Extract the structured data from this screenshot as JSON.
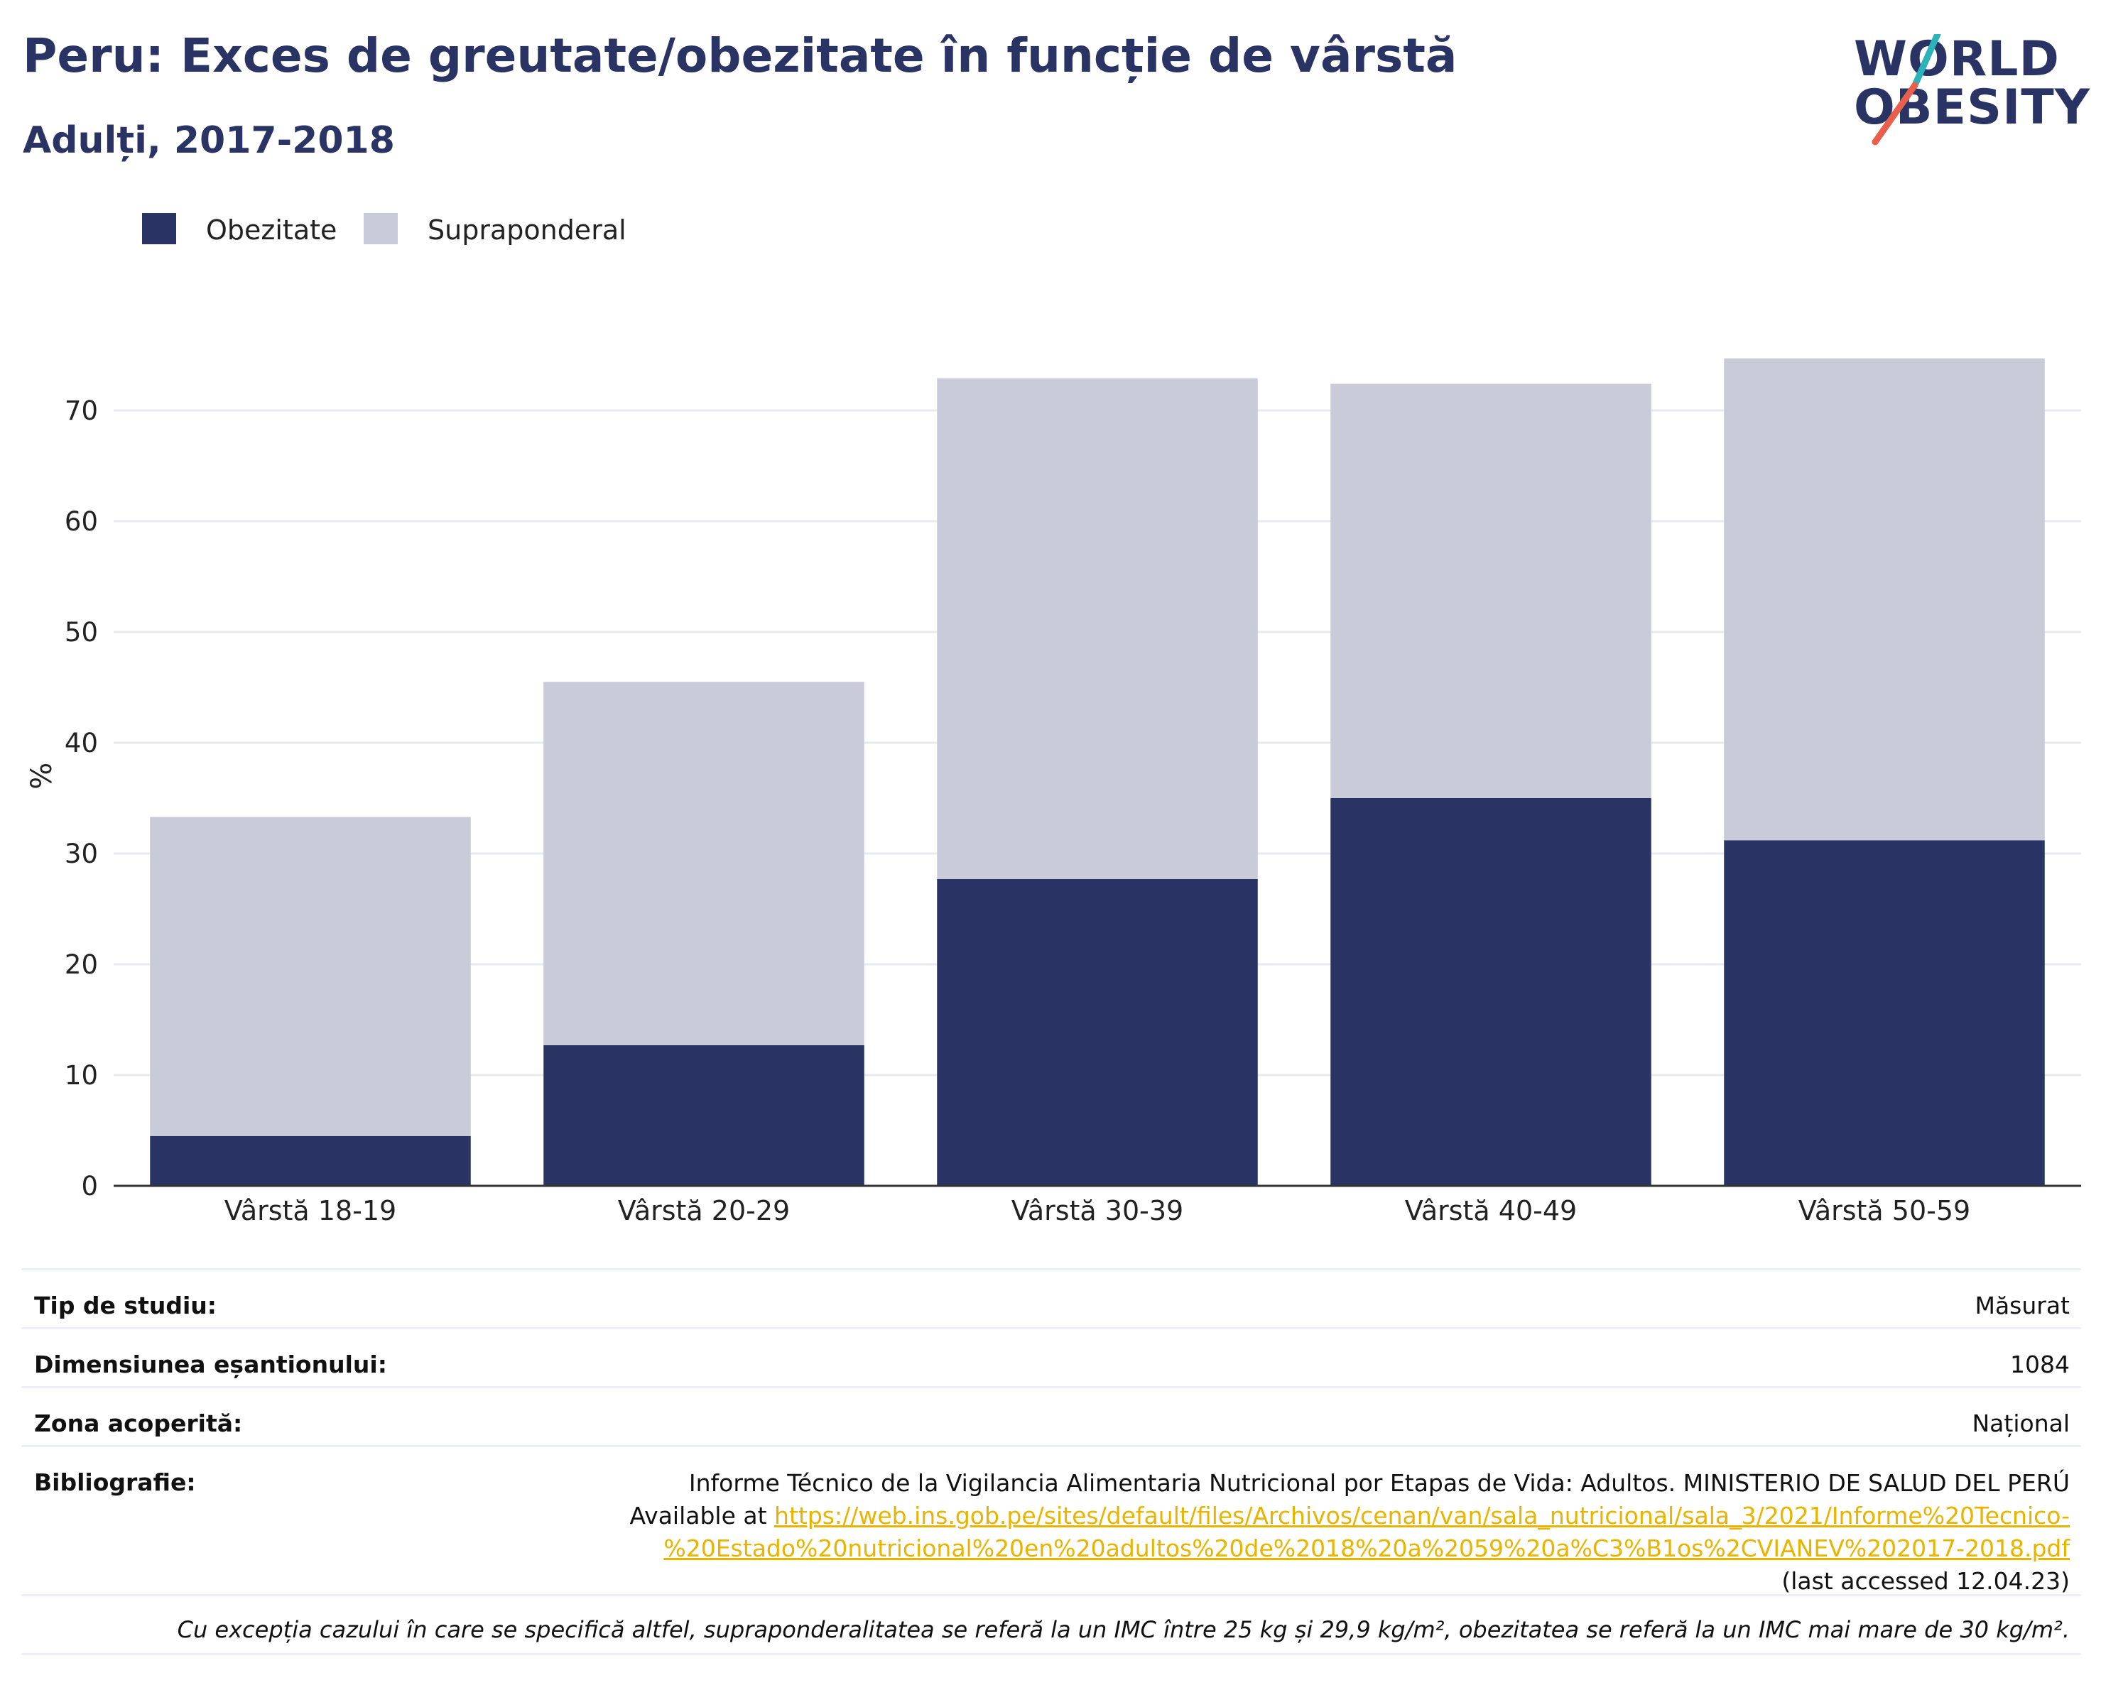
{
  "header": {
    "title": "Peru: Exces de greutate/obezitate în funcție de vârstă",
    "subtitle": "Adulți, 2017-2018"
  },
  "logo": {
    "line1": "WORLD",
    "line2": "OBESITY"
  },
  "colors": {
    "obesity": "#2a3464",
    "overweight": "#c9ccd8",
    "accent_teal": "#2bb3b9",
    "accent_red": "#e8604c",
    "link": "#e8b400"
  },
  "chart_data": {
    "type": "bar",
    "stacked": true,
    "categories": [
      "Vârstă 18-19",
      "Vârstă 20-29",
      "Vârstă 30-39",
      "Vârstă 40-49",
      "Vârstă 50-59"
    ],
    "series": [
      {
        "name": "Obezitate",
        "values": [
          4.5,
          12.7,
          27.7,
          35.0,
          31.2
        ]
      },
      {
        "name": "Supraponderal",
        "values": [
          28.8,
          32.8,
          45.2,
          37.4,
          43.5
        ]
      }
    ],
    "ylabel": "%",
    "xlabel": "",
    "ylim": [
      0,
      75
    ],
    "yticks": [
      0,
      10,
      20,
      30,
      40,
      50,
      60,
      70
    ],
    "grid": true,
    "legend_position": "top-left"
  },
  "meta": {
    "rows": [
      {
        "key": "Tip de studiu:",
        "value": "Măsurat"
      },
      {
        "key": "Dimensiunea eșantionului:",
        "value": "1084"
      },
      {
        "key": "Zona acoperită:",
        "value": "Național"
      }
    ],
    "bibliography": {
      "key": "Bibliografie:",
      "text_before": "Informe Técnico de la Vigilancia Alimentaria Nutricional por Etapas de Vida: Adultos. MINISTERIO DE SALUD DEL PERÚ Available at ",
      "link": "https://web.ins.gob.pe/sites/default/files/Archivos/cenan/van/sala_nutricional/sala_3/2021/Informe%20Tecnico-%20Estado%20nutricional%20en%20adultos%20de%2018%20a%2059%20a%C3%B1os%2CVIANEV%202017-2018.pdf",
      "text_after": " (last accessed 12.04.23)"
    },
    "footnote": "Cu excepția cazului în care se specifică altfel, supraponderalitatea se referă la un IMC între 25 kg și 29,9 kg/m², obezitatea se referă la un IMC mai mare de 30 kg/m²."
  }
}
